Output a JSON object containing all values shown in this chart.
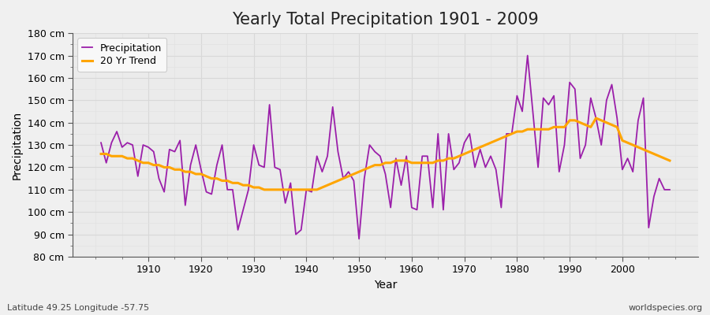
{
  "title": "Yearly Total Precipitation 1901 - 2009",
  "xlabel": "Year",
  "ylabel": "Precipitation",
  "subtitle": "Latitude 49.25 Longitude -57.75",
  "watermark": "worldspecies.org",
  "years": [
    1901,
    1902,
    1903,
    1904,
    1905,
    1906,
    1907,
    1908,
    1909,
    1910,
    1911,
    1912,
    1913,
    1914,
    1915,
    1916,
    1917,
    1918,
    1919,
    1920,
    1921,
    1922,
    1923,
    1924,
    1925,
    1926,
    1927,
    1928,
    1929,
    1930,
    1931,
    1932,
    1933,
    1934,
    1935,
    1936,
    1937,
    1938,
    1939,
    1940,
    1941,
    1942,
    1943,
    1944,
    1945,
    1946,
    1947,
    1948,
    1949,
    1950,
    1951,
    1952,
    1953,
    1954,
    1955,
    1956,
    1957,
    1958,
    1959,
    1960,
    1961,
    1962,
    1963,
    1964,
    1965,
    1966,
    1967,
    1968,
    1969,
    1970,
    1971,
    1972,
    1973,
    1974,
    1975,
    1976,
    1977,
    1978,
    1979,
    1980,
    1981,
    1982,
    1983,
    1984,
    1985,
    1986,
    1987,
    1988,
    1989,
    1990,
    1991,
    1992,
    1993,
    1994,
    1995,
    1996,
    1997,
    1998,
    1999,
    2000,
    2001,
    2002,
    2003,
    2004,
    2005,
    2006,
    2007,
    2008,
    2009
  ],
  "precip": [
    131,
    122,
    131,
    136,
    129,
    131,
    130,
    116,
    130,
    129,
    127,
    115,
    109,
    128,
    127,
    132,
    103,
    121,
    130,
    119,
    109,
    108,
    121,
    130,
    110,
    110,
    92,
    101,
    110,
    130,
    121,
    120,
    148,
    120,
    119,
    104,
    113,
    90,
    92,
    110,
    109,
    125,
    118,
    125,
    147,
    127,
    115,
    118,
    114,
    88,
    115,
    130,
    127,
    125,
    117,
    102,
    124,
    112,
    125,
    102,
    101,
    125,
    125,
    102,
    135,
    101,
    135,
    119,
    122,
    131,
    135,
    120,
    128,
    120,
    125,
    119,
    102,
    135,
    135,
    152,
    145,
    170,
    145,
    120,
    151,
    148,
    152,
    118,
    130,
    158,
    155,
    124,
    130,
    151,
    142,
    130,
    150,
    157,
    142,
    119,
    124,
    118,
    141,
    151,
    93,
    107,
    115,
    110,
    110
  ],
  "trend": [
    126,
    126,
    125,
    125,
    125,
    124,
    124,
    123,
    122,
    122,
    121,
    121,
    120,
    120,
    119,
    119,
    118,
    118,
    117,
    117,
    116,
    115,
    115,
    114,
    114,
    113,
    113,
    112,
    112,
    111,
    111,
    110,
    110,
    110,
    110,
    110,
    110,
    110,
    110,
    110,
    110,
    110,
    111,
    112,
    113,
    114,
    115,
    116,
    117,
    118,
    119,
    120,
    121,
    121,
    122,
    122,
    123,
    123,
    123,
    122,
    122,
    122,
    122,
    122,
    123,
    123,
    124,
    124,
    125,
    126,
    127,
    128,
    129,
    130,
    131,
    132,
    133,
    134,
    135,
    136,
    136,
    137,
    137,
    137,
    137,
    137,
    138,
    138,
    138,
    141,
    141,
    140,
    139,
    138,
    142,
    141,
    140,
    139,
    138,
    132,
    131,
    130,
    129,
    128,
    127,
    126,
    125,
    124,
    123
  ],
  "precip_color": "#9b1faa",
  "trend_color": "#ffa500",
  "bg_color": "#f0f0f0",
  "plot_bg_color": "#ebebeb",
  "grid_major_color": "#d8d8d8",
  "grid_minor_color": "#e2e2e2",
  "spine_color": "#555555",
  "ylim": [
    80,
    180
  ],
  "yticks": [
    80,
    90,
    100,
    110,
    120,
    130,
    140,
    150,
    160,
    170,
    180
  ],
  "xticks": [
    1910,
    1920,
    1930,
    1940,
    1950,
    1960,
    1970,
    1980,
    1990,
    2000
  ],
  "title_fontsize": 15,
  "label_fontsize": 10,
  "tick_fontsize": 9,
  "legend_fontsize": 9,
  "precip_linewidth": 1.3,
  "trend_linewidth": 2.2
}
